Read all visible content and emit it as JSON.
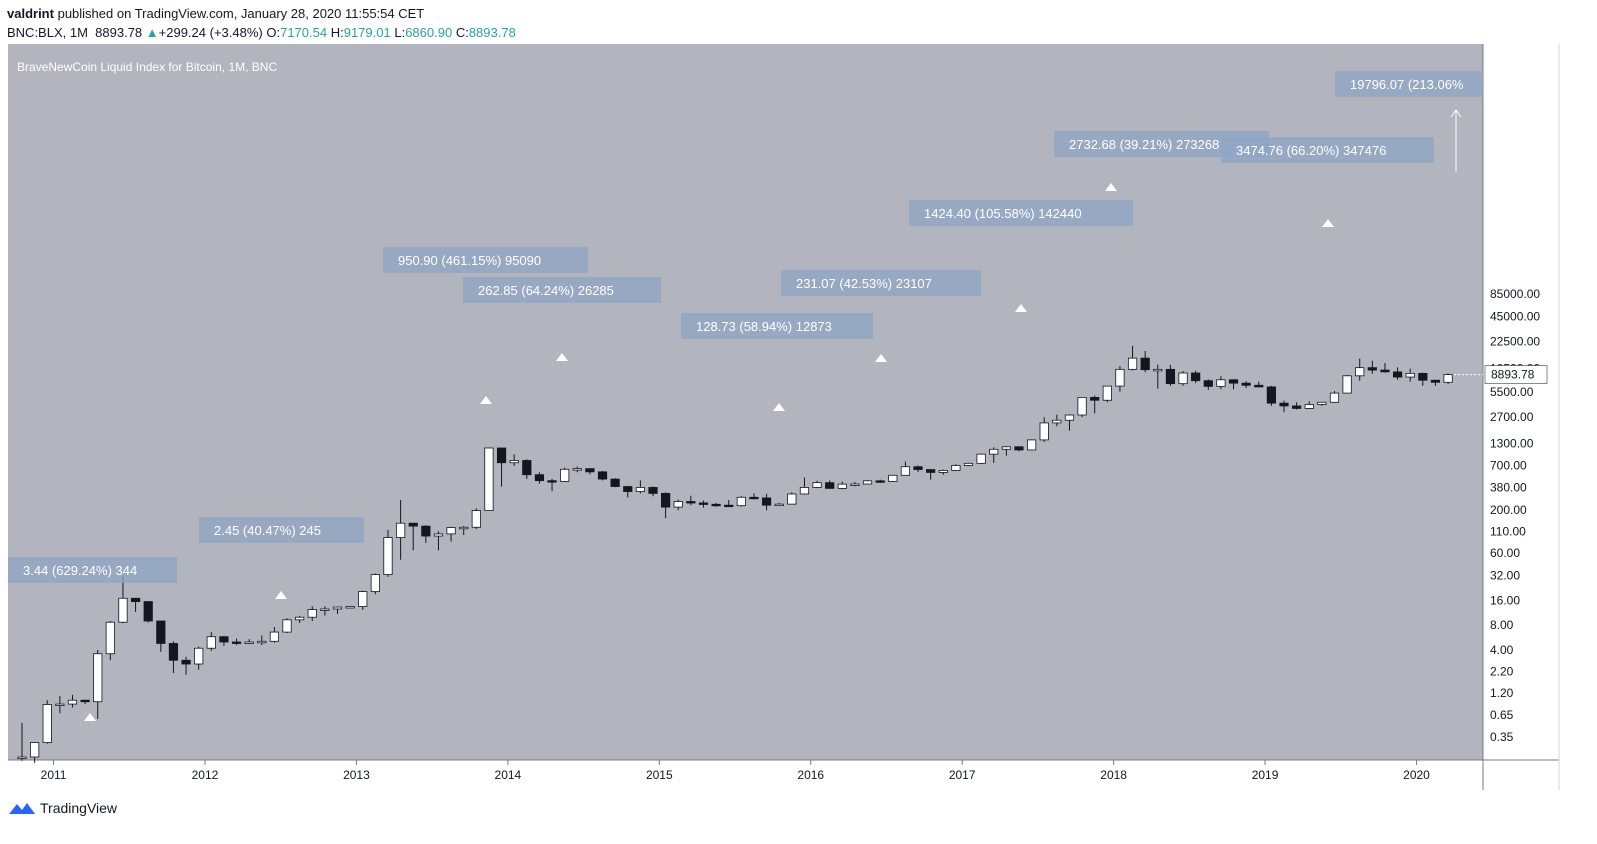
{
  "header": {
    "publisher": "valdrint",
    "published_text": "published on TradingView.com, January 28, 2020 11:55:54 CET",
    "symbol": "BNC:BLX, 1M",
    "last": "8893.78",
    "change": "+299.24 (+3.48%)",
    "o_label": "O:",
    "o": "7170.54",
    "h_label": "H:",
    "h": "9179.01",
    "l_label": "L:",
    "l": "6860.90",
    "c_label": "C:",
    "c": "8893.78"
  },
  "branding": {
    "name": "TradingView"
  },
  "colors": {
    "plot_bg": "#b2b5be",
    "candle_up": "#ffffff",
    "candle_down": "#131722",
    "box_fill": "#8fa4c4",
    "price_tag_bg": "#ffffff",
    "up_text": "#26a69a"
  },
  "chart_data": {
    "type": "candlestick",
    "title": "BraveNewCoin Liquid Index for Bitcoin, 1M, BNC",
    "scale": "log",
    "grid": false,
    "x_ticks": [
      "2011",
      "2012",
      "2013",
      "2014",
      "2015",
      "2016",
      "2017",
      "2018",
      "2019",
      "2020"
    ],
    "y_ticks": [
      "85000.00",
      "45000.00",
      "22500.00",
      "10500.00",
      "5500.00",
      "2700.00",
      "1300.00",
      "700.00",
      "380.00",
      "200.00",
      "110.00",
      "60.00",
      "32.00",
      "16.00",
      "8.00",
      "4.00",
      "2.20",
      "1.20",
      "0.65",
      "0.35"
    ],
    "y_tick_values": [
      85000,
      45000,
      22500,
      10500,
      5500,
      2700,
      1300,
      700,
      380,
      200,
      110,
      60,
      32,
      16,
      8,
      4,
      2.2,
      1.2,
      0.65,
      0.35
    ],
    "last_price": {
      "value": 8893.78,
      "label": "8893.78"
    },
    "candles": [
      [
        0.2,
        0.52,
        0.18,
        0.2
      ],
      [
        0.2,
        0.3,
        0.17,
        0.3
      ],
      [
        0.3,
        0.98,
        0.29,
        0.87
      ],
      [
        0.87,
        1.1,
        0.68,
        0.88
      ],
      [
        0.88,
        1.14,
        0.8,
        0.98
      ],
      [
        0.98,
        0.99,
        0.88,
        0.94
      ],
      [
        0.94,
        4.0,
        0.58,
        3.6
      ],
      [
        3.6,
        9.0,
        3.0,
        8.7
      ],
      [
        8.7,
        32.0,
        8.5,
        17.0
      ],
      [
        17.0,
        16.9,
        11.6,
        15.5
      ],
      [
        15.5,
        15.3,
        8.6,
        9.0
      ],
      [
        9.0,
        8.5,
        3.8,
        4.8
      ],
      [
        4.8,
        5.1,
        2.1,
        3.0
      ],
      [
        3.0,
        3.3,
        2.0,
        2.7
      ],
      [
        2.7,
        4.4,
        2.3,
        4.2
      ],
      [
        4.2,
        6.6,
        3.9,
        5.8
      ],
      [
        5.8,
        5.9,
        4.5,
        5.0
      ],
      [
        5.0,
        5.5,
        4.6,
        4.9
      ],
      [
        4.9,
        5.4,
        4.8,
        5.0
      ],
      [
        5.0,
        6.0,
        4.6,
        5.1
      ],
      [
        5.1,
        7.6,
        4.9,
        6.6
      ],
      [
        6.6,
        9.7,
        6.4,
        9.3
      ],
      [
        9.3,
        10.4,
        8.5,
        10.0
      ],
      [
        10.0,
        13.6,
        9.0,
        12.4
      ],
      [
        12.4,
        13.6,
        10.5,
        12.6
      ],
      [
        12.6,
        13.4,
        11.0,
        13.3
      ],
      [
        13.3,
        13.5,
        12.9,
        13.5
      ],
      [
        13.5,
        21.0,
        12.3,
        20.5
      ],
      [
        20.5,
        34.0,
        19.0,
        33.0
      ],
      [
        33.0,
        115.0,
        31.0,
        93.0
      ],
      [
        93.0,
        266.0,
        50.0,
        139.0
      ],
      [
        139.0,
        140.0,
        65.0,
        128.0
      ],
      [
        128.0,
        131.0,
        80.0,
        97.0
      ],
      [
        97.0,
        111.0,
        65.0,
        103.0
      ],
      [
        103.0,
        125.0,
        83.0,
        123.0
      ],
      [
        123.0,
        129.0,
        100.0,
        124.0
      ],
      [
        124.0,
        211.0,
        118.0,
        198.0
      ],
      [
        198.0,
        1150.0,
        198.0,
        1140.0
      ],
      [
        1140.0,
        1150.0,
        387.0,
        755.0
      ],
      [
        755.0,
        955.0,
        690.0,
        804.0
      ],
      [
        804.0,
        833.0,
        480.0,
        540.0
      ],
      [
        540.0,
        578.0,
        420.0,
        457.0
      ],
      [
        457.0,
        480.0,
        340.0,
        448.0
      ],
      [
        448.0,
        660.0,
        440.0,
        628.0
      ],
      [
        628.0,
        680.0,
        578.0,
        640.0
      ],
      [
        640.0,
        647.0,
        545.0,
        585.0
      ],
      [
        585.0,
        600.0,
        460.0,
        478.0
      ],
      [
        478.0,
        488.0,
        380.0,
        388.0
      ],
      [
        388.0,
        395.0,
        285.0,
        337.0
      ],
      [
        337.0,
        460.0,
        320.0,
        378.0
      ],
      [
        378.0,
        390.0,
        295.0,
        320.0
      ],
      [
        320.0,
        330.0,
        160.0,
        218.0
      ],
      [
        218.0,
        270.0,
        200.0,
        255.0
      ],
      [
        255.0,
        300.0,
        230.0,
        245.0
      ],
      [
        245.0,
        262.0,
        215.0,
        236.0
      ],
      [
        236.0,
        245.0,
        220.0,
        230.0
      ],
      [
        230.0,
        265.0,
        220.0,
        227.0
      ],
      [
        227.0,
        297.0,
        220.0,
        287.0
      ],
      [
        287.0,
        320.0,
        270.0,
        282.0
      ],
      [
        282.0,
        316.0,
        200.0,
        230.0
      ],
      [
        230.0,
        245.0,
        225.0,
        237.0
      ],
      [
        237.0,
        330.0,
        235.0,
        315.0
      ],
      [
        315.0,
        500.0,
        310.0,
        378.0
      ],
      [
        378.0,
        456.0,
        370.0,
        432.0
      ],
      [
        432.0,
        460.0,
        370.0,
        368.0
      ],
      [
        368.0,
        445.0,
        360.0,
        415.0
      ],
      [
        415.0,
        440.0,
        390.0,
        416.0
      ],
      [
        416.0,
        465.0,
        415.0,
        455.0
      ],
      [
        455.0,
        470.0,
        430.0,
        448.0
      ],
      [
        448.0,
        540.0,
        440.0,
        531.0
      ],
      [
        531.0,
        780.0,
        525.0,
        675.0
      ],
      [
        675.0,
        700.0,
        580.0,
        624.0
      ],
      [
        624.0,
        630.0,
        470.0,
        575.0
      ],
      [
        575.0,
        625.0,
        540.0,
        609.0
      ],
      [
        609.0,
        725.0,
        600.0,
        700.0
      ],
      [
        700.0,
        755.0,
        690.0,
        742.0
      ],
      [
        742.0,
        975.0,
        730.0,
        960.0
      ],
      [
        960.0,
        1160.0,
        750.0,
        1100.0
      ],
      [
        1100.0,
        1200.0,
        920.0,
        1180.0
      ],
      [
        1180.0,
        1200.0,
        1040.0,
        1080.0
      ],
      [
        1080.0,
        1450.0,
        1080.0,
        1430.0
      ],
      [
        1430.0,
        2700.0,
        1350.0,
        2300.0
      ],
      [
        2300.0,
        2900.0,
        2100.0,
        2480.0
      ],
      [
        2480.0,
        2920.0,
        1850.0,
        2870.0
      ],
      [
        2870.0,
        4750.0,
        2700.0,
        4700.0
      ],
      [
        4700.0,
        4950.0,
        3000.0,
        4340.0
      ],
      [
        4340.0,
        6400.0,
        4100.0,
        6450.0
      ],
      [
        6450.0,
        11300.0,
        5500.0,
        10300.0
      ],
      [
        10300.0,
        19900.0,
        10000.0,
        14100.0
      ],
      [
        14100.0,
        17200.0,
        9500.0,
        10200.0
      ],
      [
        10200.0,
        11800.0,
        6000.0,
        10300.0
      ],
      [
        10300.0,
        11700.0,
        6500.0,
        6900.0
      ],
      [
        6900.0,
        9800.0,
        6500.0,
        9300.0
      ],
      [
        9300.0,
        9900.0,
        7000.0,
        7500.0
      ],
      [
        7500.0,
        7800.0,
        5800.0,
        6400.0
      ],
      [
        6400.0,
        8500.0,
        5900.0,
        7700.0
      ],
      [
        7700.0,
        7800.0,
        5900.0,
        7000.0
      ],
      [
        7000.0,
        7400.0,
        6100.0,
        6600.0
      ],
      [
        6600.0,
        7300.0,
        6200.0,
        6300.0
      ],
      [
        6300.0,
        6500.0,
        3700.0,
        4000.0
      ],
      [
        4000.0,
        4300.0,
        3100.0,
        3700.0
      ],
      [
        3700.0,
        4100.0,
        3350.0,
        3450.0
      ],
      [
        3450.0,
        4200.0,
        3400.0,
        3850.0
      ],
      [
        3850.0,
        4100.0,
        3700.0,
        4100.0
      ],
      [
        4100.0,
        5600.0,
        4050.0,
        5300.0
      ],
      [
        5300.0,
        8800.0,
        5300.0,
        8600.0
      ],
      [
        8600.0,
        13900.0,
        7500.0,
        10800.0
      ],
      [
        10800.0,
        13100.0,
        9100.0,
        10100.0
      ],
      [
        10100.0,
        12300.0,
        9400.0,
        9600.0
      ],
      [
        9600.0,
        10900.0,
        7700.0,
        8300.0
      ],
      [
        8300.0,
        10500.0,
        7300.0,
        9200.0
      ],
      [
        9200.0,
        9400.0,
        6500.0,
        7600.0
      ],
      [
        7600.0,
        7700.0,
        6500.0,
        7170.0
      ],
      [
        7170.54,
        9179.01,
        6860.9,
        8893.78
      ]
    ],
    "annotations": [
      {
        "label": "3.44 (629.24%) 344"
      },
      {
        "label": "2.45 (40.47%) 245"
      },
      {
        "label": "950.90 (461.15%) 95090"
      },
      {
        "label": "262.85 (64.24%) 26285"
      },
      {
        "label": "128.73 (58.94%) 12873"
      },
      {
        "label": "231.07 (42.53%) 23107"
      },
      {
        "label": "1424.40 (105.58%) 142440"
      },
      {
        "label": "2732.68 (39.21%) 273268"
      },
      {
        "label": "3474.76 (66.20%) 347476"
      },
      {
        "label": "19796.07 (213.06%"
      }
    ]
  }
}
